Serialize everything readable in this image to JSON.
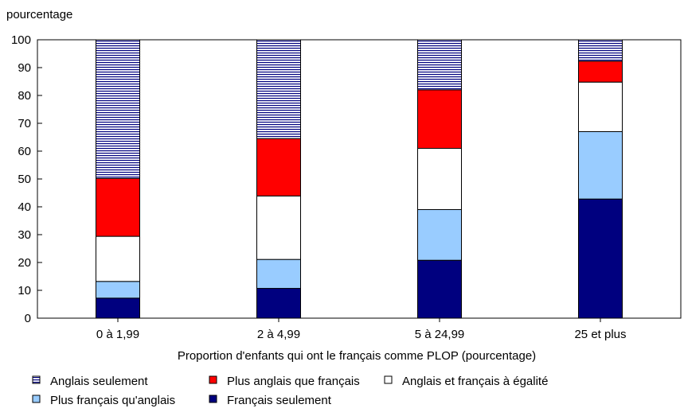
{
  "chart_data": {
    "type": "bar",
    "stacked": true,
    "title": "",
    "ylabel": "pourcentage",
    "xlabel": "Proportion d'enfants qui ont le français comme PLOP (pourcentage)",
    "ylim": [
      0,
      100
    ],
    "yticks": [
      "0",
      "10",
      "20",
      "30",
      "40",
      "50",
      "60",
      "70",
      "80",
      "90",
      "100"
    ],
    "categories": [
      "0 à 1,99",
      "2 à 4,99",
      "5 à 24,99",
      "25 et plus"
    ],
    "grid": false,
    "legend_position": "bottom",
    "series": [
      {
        "name": "Français seulement",
        "color": "#00007f",
        "pattern": "solid",
        "values": [
          7.2,
          10.7,
          20.8,
          42.8
        ]
      },
      {
        "name": "Plus français qu'anglais",
        "color": "#99ccff",
        "pattern": "solid",
        "values": [
          6.0,
          10.4,
          18.2,
          24.2
        ]
      },
      {
        "name": "Anglais et français à égalité",
        "color": "#ffffff",
        "pattern": "solid",
        "values": [
          16.2,
          22.8,
          22.0,
          17.8
        ]
      },
      {
        "name": "Plus anglais que français",
        "color": "#ff0000",
        "pattern": "solid",
        "values": [
          20.8,
          20.6,
          21.0,
          7.5
        ]
      },
      {
        "name": "Anglais seulement",
        "color": "#00007f",
        "pattern": "horizontal-stripes",
        "values": [
          49.8,
          35.5,
          18.0,
          7.7
        ]
      }
    ],
    "legend_order": [
      "Anglais seulement",
      "Plus anglais que français",
      "Anglais et français à égalité",
      "Plus français qu'anglais",
      "Français seulement"
    ]
  }
}
